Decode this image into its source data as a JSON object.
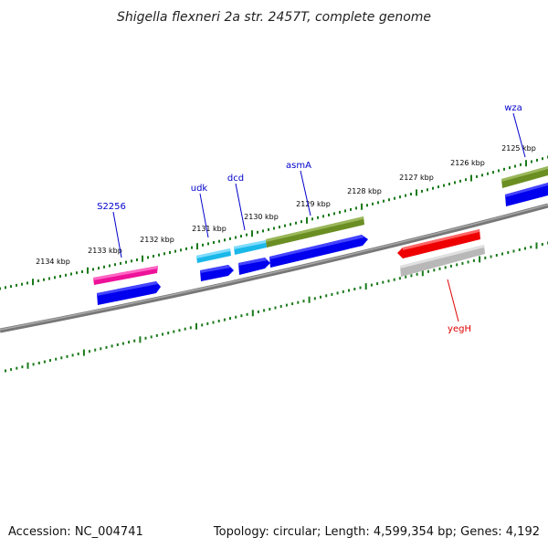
{
  "title": "Shigella flexneri 2a str. 2457T, complete genome",
  "footer": {
    "accession": "Accession: NC_004741",
    "summary": "Topology: circular; Length: 4,599,354 bp; Genes: 4,192"
  },
  "colors": {
    "backbone": "#777777",
    "tick": "#1a7a1a",
    "forward_cds": "#0000ee",
    "gene_label_forward": "#0000cc",
    "gene_label_reverse": "#dd0000",
    "cyan_feature": "#1ab8e8",
    "olive_feature": "#6b8e23",
    "pink_feature": "#ee1199",
    "red_feature": "#ee0000",
    "gray_feature": "#b8b8b8"
  },
  "scale_labels": [
    "2134 kbp",
    "2133 kbp",
    "2132 kbp",
    "2131 kbp",
    "2130 kbp",
    "2129 kbp",
    "2128 kbp",
    "2127 kbp",
    "2126 kbp",
    "2125 kbp"
  ],
  "genes": [
    {
      "id": "s2256",
      "label": "S2256",
      "strand": "forward"
    },
    {
      "id": "udk",
      "label": "udk",
      "strand": "forward"
    },
    {
      "id": "dcd",
      "label": "dcd",
      "strand": "forward"
    },
    {
      "id": "asmA",
      "label": "asmA",
      "strand": "forward"
    },
    {
      "id": "wza",
      "label": "wza",
      "strand": "forward"
    },
    {
      "id": "yegH",
      "label": "yegH",
      "strand": "reverse"
    }
  ]
}
